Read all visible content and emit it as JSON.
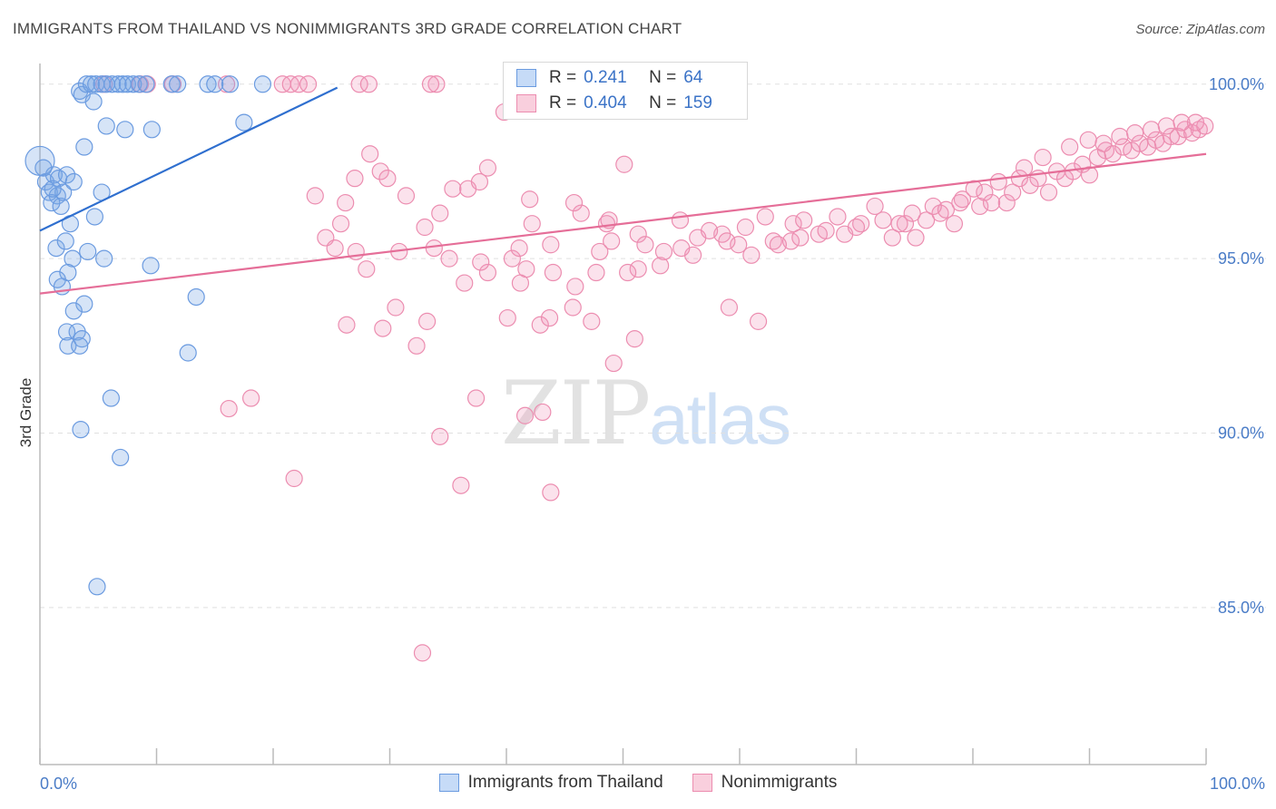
{
  "header": {
    "title": "IMMIGRANTS FROM THAILAND VS NONIMMIGRANTS 3RD GRADE CORRELATION CHART",
    "source": "Source: ZipAtlas.com"
  },
  "watermark": {
    "zip": "ZIP",
    "atlas": "atlas"
  },
  "legend": {
    "r_label": "R =",
    "n_label": "N =",
    "rows": [
      {
        "r": "0.241",
        "n": "64",
        "color": "#6b9be0"
      },
      {
        "r": "0.404",
        "n": "159",
        "color": "#ec8db0"
      }
    ]
  },
  "colors": {
    "blue": "#6b9be0",
    "pink": "#ec8db0",
    "blue_line": "#2f6fcf",
    "pink_line": "#e56e98",
    "tick_text": "#4a7cc7"
  },
  "chart_data": {
    "type": "scatter",
    "title": "IMMIGRANTS FROM THAILAND VS NONIMMIGRANTS 3RD GRADE CORRELATION CHART",
    "xlabel": "",
    "ylabel": "3rd Grade",
    "xlim": [
      0,
      100
    ],
    "ylim": [
      80.5,
      100.8
    ],
    "x_tick_labels": [
      "0.0%",
      "100.0%"
    ],
    "y_ticks": [
      85,
      90,
      95,
      100
    ],
    "y_tick_labels": [
      "85.0%",
      "90.0%",
      "95.0%",
      "100.0%"
    ],
    "grid": "horizontal dashed",
    "legend_position": "bottom",
    "series": [
      {
        "name": "Immigrants from Thailand",
        "r": 0.241,
        "n": 64,
        "trend": [
          [
            0,
            95.8
          ],
          [
            25.5,
            99.9
          ]
        ],
        "points": [
          [
            0,
            97.8,
            16
          ],
          [
            0.5,
            97.2,
            9
          ],
          [
            0.8,
            96.9,
            9
          ],
          [
            1.2,
            97.4,
            9
          ],
          [
            1.5,
            96.8,
            9
          ],
          [
            0.3,
            97.6,
            9
          ],
          [
            1.0,
            96.6,
            9
          ],
          [
            1.6,
            97.3,
            9
          ],
          [
            1.8,
            96.5,
            9
          ],
          [
            2.0,
            96.9,
            9
          ],
          [
            2.3,
            97.4,
            9
          ],
          [
            2.6,
            96.0,
            9
          ],
          [
            2.9,
            97.2,
            9
          ],
          [
            3.4,
            99.8,
            9
          ],
          [
            3.6,
            99.7,
            9
          ],
          [
            4.0,
            100,
            9
          ],
          [
            4.4,
            100,
            9
          ],
          [
            4.8,
            100,
            9
          ],
          [
            5.3,
            100,
            9
          ],
          [
            5.7,
            100,
            9
          ],
          [
            6.2,
            100,
            9
          ],
          [
            6.7,
            100,
            9
          ],
          [
            7.1,
            100,
            9
          ],
          [
            7.5,
            100,
            9
          ],
          [
            8.0,
            100,
            9
          ],
          [
            8.5,
            100,
            9
          ],
          [
            9.1,
            100,
            9
          ],
          [
            11.3,
            100,
            9
          ],
          [
            11.8,
            100,
            9
          ],
          [
            14.4,
            100,
            9
          ],
          [
            15.0,
            100,
            9
          ],
          [
            16.3,
            100,
            9
          ],
          [
            19.1,
            100,
            9
          ],
          [
            4.6,
            99.5,
            9
          ],
          [
            5.7,
            98.8,
            9
          ],
          [
            7.3,
            98.7,
            9
          ],
          [
            9.6,
            98.7,
            9
          ],
          [
            3.8,
            98.2,
            9
          ],
          [
            17.5,
            98.9,
            9
          ],
          [
            5.3,
            96.9,
            9
          ],
          [
            4.7,
            96.2,
            9
          ],
          [
            1.4,
            95.3,
            9
          ],
          [
            2.2,
            95.5,
            9
          ],
          [
            2.8,
            95.0,
            9
          ],
          [
            4.1,
            95.2,
            9
          ],
          [
            5.5,
            95.0,
            9
          ],
          [
            9.5,
            94.8,
            9
          ],
          [
            2.4,
            94.6,
            9
          ],
          [
            1.5,
            94.4,
            9
          ],
          [
            1.9,
            94.2,
            9
          ],
          [
            3.8,
            93.7,
            9
          ],
          [
            2.9,
            93.5,
            9
          ],
          [
            13.4,
            93.9,
            9
          ],
          [
            2.3,
            92.9,
            9
          ],
          [
            3.2,
            92.9,
            9
          ],
          [
            3.6,
            92.7,
            9
          ],
          [
            2.4,
            92.5,
            9
          ],
          [
            3.4,
            92.5,
            9
          ],
          [
            12.7,
            92.3,
            9
          ],
          [
            6.1,
            91.0,
            9
          ],
          [
            3.5,
            90.1,
            9
          ],
          [
            6.9,
            89.3,
            9
          ],
          [
            4.9,
            85.6,
            9
          ],
          [
            1.1,
            97.0,
            9
          ]
        ]
      },
      {
        "name": "Nonimmigrants",
        "r": 0.404,
        "n": 159,
        "trend": [
          [
            0,
            94.0
          ],
          [
            100,
            98.0
          ]
        ],
        "points": [
          [
            5.5,
            100,
            9
          ],
          [
            8.6,
            100,
            9
          ],
          [
            9.2,
            100,
            9
          ],
          [
            11.4,
            100,
            9
          ],
          [
            16.0,
            100,
            9
          ],
          [
            20.8,
            100,
            9
          ],
          [
            21.5,
            100,
            9
          ],
          [
            22.2,
            100,
            9
          ],
          [
            23.0,
            100,
            9
          ],
          [
            27.4,
            100,
            9
          ],
          [
            28.2,
            100,
            9
          ],
          [
            34.0,
            100,
            9
          ],
          [
            33.5,
            100,
            9
          ],
          [
            39.8,
            99.2,
            9
          ],
          [
            28.3,
            98.0,
            9
          ],
          [
            29.2,
            97.5,
            9
          ],
          [
            27.0,
            97.3,
            9
          ],
          [
            29.8,
            97.3,
            9
          ],
          [
            38.4,
            97.6,
            9
          ],
          [
            35.4,
            97.0,
            9
          ],
          [
            36.7,
            97.0,
            9
          ],
          [
            37.7,
            97.2,
            9
          ],
          [
            50.1,
            97.7,
            9
          ],
          [
            23.6,
            96.8,
            9
          ],
          [
            31.4,
            96.8,
            9
          ],
          [
            26.2,
            96.6,
            9
          ],
          [
            34.3,
            96.3,
            9
          ],
          [
            42.0,
            96.7,
            9
          ],
          [
            46.4,
            96.3,
            9
          ],
          [
            45.8,
            96.6,
            9
          ],
          [
            48.6,
            96.0,
            9
          ],
          [
            25.8,
            96.0,
            9
          ],
          [
            33.0,
            95.9,
            9
          ],
          [
            42.2,
            96.0,
            9
          ],
          [
            48.8,
            96.1,
            9
          ],
          [
            54.9,
            96.1,
            9
          ],
          [
            24.5,
            95.6,
            9
          ],
          [
            30.8,
            95.2,
            9
          ],
          [
            25.3,
            95.3,
            9
          ],
          [
            27.1,
            95.2,
            9
          ],
          [
            33.8,
            95.3,
            9
          ],
          [
            35.1,
            95.0,
            9
          ],
          [
            40.5,
            95.0,
            9
          ],
          [
            41.1,
            95.3,
            9
          ],
          [
            43.8,
            95.4,
            9
          ],
          [
            48.0,
            95.2,
            9
          ],
          [
            49.0,
            95.5,
            9
          ],
          [
            51.3,
            95.7,
            9
          ],
          [
            51.9,
            95.4,
            9
          ],
          [
            53.5,
            95.2,
            9
          ],
          [
            56.4,
            95.6,
            9
          ],
          [
            58.5,
            95.7,
            9
          ],
          [
            59.9,
            95.4,
            9
          ],
          [
            61.0,
            95.1,
            9
          ],
          [
            62.9,
            95.5,
            9
          ],
          [
            64.4,
            95.5,
            9
          ],
          [
            64.6,
            96.0,
            9
          ],
          [
            65.5,
            96.1,
            9
          ],
          [
            66.8,
            95.7,
            9
          ],
          [
            68.4,
            96.2,
            9
          ],
          [
            69.0,
            95.7,
            9
          ],
          [
            70.4,
            96.0,
            9
          ],
          [
            71.6,
            96.5,
            9
          ],
          [
            72.3,
            96.1,
            9
          ],
          [
            73.1,
            95.6,
            9
          ],
          [
            74.2,
            96.0,
            9
          ],
          [
            75.1,
            95.6,
            9
          ],
          [
            76.0,
            96.1,
            9
          ],
          [
            77.2,
            96.3,
            9
          ],
          [
            78.4,
            96.0,
            9
          ],
          [
            79.1,
            96.7,
            9
          ],
          [
            80.6,
            96.5,
            9
          ],
          [
            81.0,
            96.9,
            9
          ],
          [
            81.6,
            96.6,
            9
          ],
          [
            82.9,
            96.6,
            9
          ],
          [
            83.4,
            96.9,
            9
          ],
          [
            84.0,
            97.3,
            9
          ],
          [
            84.9,
            97.1,
            9
          ],
          [
            85.6,
            97.3,
            9
          ],
          [
            86.5,
            96.9,
            9
          ],
          [
            87.2,
            97.5,
            9
          ],
          [
            87.9,
            97.3,
            9
          ],
          [
            88.6,
            97.5,
            9
          ],
          [
            89.4,
            97.7,
            9
          ],
          [
            90.0,
            97.4,
            9
          ],
          [
            90.7,
            97.9,
            9
          ],
          [
            91.4,
            98.1,
            9
          ],
          [
            92.0,
            98.0,
            9
          ],
          [
            92.9,
            98.2,
            9
          ],
          [
            93.6,
            98.1,
            9
          ],
          [
            94.3,
            98.3,
            9
          ],
          [
            95.0,
            98.2,
            9
          ],
          [
            95.7,
            98.4,
            9
          ],
          [
            96.3,
            98.3,
            9
          ],
          [
            97.0,
            98.5,
            9
          ],
          [
            97.6,
            98.5,
            9
          ],
          [
            98.2,
            98.7,
            9
          ],
          [
            98.8,
            98.6,
            9
          ],
          [
            99.4,
            98.7,
            9
          ],
          [
            99.9,
            98.8,
            9
          ],
          [
            88.3,
            98.2,
            9
          ],
          [
            89.9,
            98.4,
            9
          ],
          [
            91.2,
            98.3,
            9
          ],
          [
            92.6,
            98.5,
            9
          ],
          [
            93.9,
            98.6,
            9
          ],
          [
            95.3,
            98.7,
            9
          ],
          [
            96.6,
            98.8,
            9
          ],
          [
            97.9,
            98.9,
            9
          ],
          [
            99.1,
            98.9,
            9
          ],
          [
            86.0,
            97.9,
            9
          ],
          [
            84.4,
            97.6,
            9
          ],
          [
            82.2,
            97.2,
            9
          ],
          [
            80.1,
            97.0,
            9
          ],
          [
            78.9,
            96.6,
            9
          ],
          [
            77.7,
            96.4,
            9
          ],
          [
            76.6,
            96.5,
            9
          ],
          [
            74.8,
            96.3,
            9
          ],
          [
            73.7,
            96.0,
            9
          ],
          [
            70.0,
            95.9,
            9
          ],
          [
            67.4,
            95.8,
            9
          ],
          [
            65.2,
            95.6,
            9
          ],
          [
            63.3,
            95.4,
            9
          ],
          [
            62.2,
            96.2,
            9
          ],
          [
            60.5,
            95.9,
            9
          ],
          [
            58.9,
            95.5,
            9
          ],
          [
            57.4,
            95.8,
            9
          ],
          [
            56.0,
            95.1,
            9
          ],
          [
            55.0,
            95.3,
            9
          ],
          [
            53.2,
            94.8,
            9
          ],
          [
            51.3,
            94.7,
            9
          ],
          [
            50.4,
            94.6,
            9
          ],
          [
            47.7,
            94.6,
            9
          ],
          [
            45.9,
            94.2,
            9
          ],
          [
            44.0,
            94.6,
            9
          ],
          [
            41.7,
            94.7,
            9
          ],
          [
            41.2,
            94.3,
            9
          ],
          [
            38.4,
            94.6,
            9
          ],
          [
            37.8,
            94.9,
            9
          ],
          [
            36.4,
            94.3,
            9
          ],
          [
            28.0,
            94.7,
            9
          ],
          [
            30.5,
            93.6,
            9
          ],
          [
            40.1,
            93.3,
            9
          ],
          [
            42.9,
            93.1,
            9
          ],
          [
            45.7,
            93.6,
            9
          ],
          [
            43.7,
            93.3,
            9
          ],
          [
            47.3,
            93.2,
            9
          ],
          [
            49.2,
            92.0,
            9
          ],
          [
            51.0,
            92.7,
            9
          ],
          [
            59.1,
            93.6,
            9
          ],
          [
            61.6,
            93.2,
            9
          ],
          [
            37.4,
            91.0,
            9
          ],
          [
            26.3,
            93.1,
            9
          ],
          [
            33.2,
            93.2,
            9
          ],
          [
            32.3,
            92.5,
            9
          ],
          [
            41.6,
            90.5,
            9
          ],
          [
            43.1,
            90.6,
            9
          ],
          [
            18.1,
            91.0,
            9
          ],
          [
            16.2,
            90.7,
            9
          ],
          [
            21.8,
            88.7,
            9
          ],
          [
            43.8,
            88.3,
            9
          ],
          [
            36.1,
            88.5,
            9
          ],
          [
            32.8,
            83.7,
            9
          ],
          [
            34.3,
            89.9,
            9
          ],
          [
            29.4,
            93.0,
            9
          ]
        ]
      }
    ]
  },
  "bottom_legend": {
    "items": [
      {
        "label": "Immigrants from Thailand",
        "color": "#6b9be0"
      },
      {
        "label": "Nonimmigrants",
        "color": "#ec8db0"
      }
    ]
  }
}
